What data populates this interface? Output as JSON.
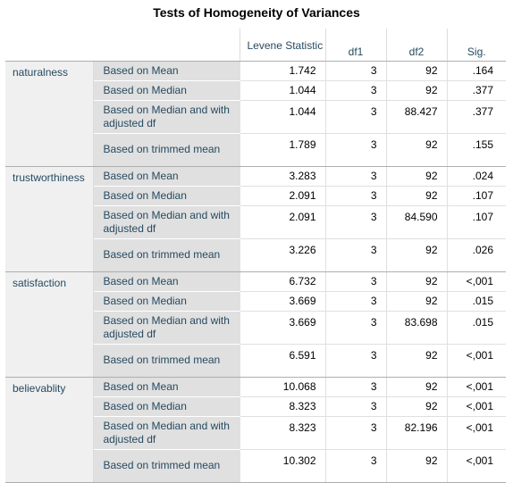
{
  "title": "Tests of Homogeneity of Variances",
  "columns": [
    "Levene Statistic",
    "df1",
    "df2",
    "Sig."
  ],
  "groups": [
    {
      "variable": "naturalness",
      "rows": [
        {
          "label": "Based on Mean",
          "levene": "1.742",
          "df1": "3",
          "df2": "92",
          "sig": ".164"
        },
        {
          "label": "Based on Median",
          "levene": "1.044",
          "df1": "3",
          "df2": "92",
          "sig": ".377"
        },
        {
          "label": "Based on Median and with adjusted df",
          "levene": "1.044",
          "df1": "3",
          "df2": "88.427",
          "sig": ".377"
        },
        {
          "label": "Based on trimmed mean",
          "levene": "1.789",
          "df1": "3",
          "df2": "92",
          "sig": ".155"
        }
      ]
    },
    {
      "variable": "trustworthiness",
      "rows": [
        {
          "label": "Based on Mean",
          "levene": "3.283",
          "df1": "3",
          "df2": "92",
          "sig": ".024"
        },
        {
          "label": "Based on Median",
          "levene": "2.091",
          "df1": "3",
          "df2": "92",
          "sig": ".107"
        },
        {
          "label": "Based on Median and with adjusted df",
          "levene": "2.091",
          "df1": "3",
          "df2": "84.590",
          "sig": ".107"
        },
        {
          "label": "Based on trimmed mean",
          "levene": "3.226",
          "df1": "3",
          "df2": "92",
          "sig": ".026"
        }
      ]
    },
    {
      "variable": "satisfaction",
      "rows": [
        {
          "label": "Based on Mean",
          "levene": "6.732",
          "df1": "3",
          "df2": "92",
          "sig": "<,001"
        },
        {
          "label": "Based on Median",
          "levene": "3.669",
          "df1": "3",
          "df2": "92",
          "sig": ".015"
        },
        {
          "label": "Based on Median and with adjusted df",
          "levene": "3.669",
          "df1": "3",
          "df2": "83.698",
          "sig": ".015"
        },
        {
          "label": "Based on trimmed mean",
          "levene": "6.591",
          "df1": "3",
          "df2": "92",
          "sig": "<,001"
        }
      ]
    },
    {
      "variable": "believablity",
      "rows": [
        {
          "label": "Based on Mean",
          "levene": "10.068",
          "df1": "3",
          "df2": "92",
          "sig": "<,001"
        },
        {
          "label": "Based on Median",
          "levene": "8.323",
          "df1": "3",
          "df2": "92",
          "sig": "<,001"
        },
        {
          "label": "Based on Median and with adjusted df",
          "levene": "8.323",
          "df1": "3",
          "df2": "82.196",
          "sig": "<,001"
        },
        {
          "label": "Based on trimmed mean",
          "levene": "10.302",
          "df1": "3",
          "df2": "92",
          "sig": "<,001"
        }
      ]
    }
  ]
}
